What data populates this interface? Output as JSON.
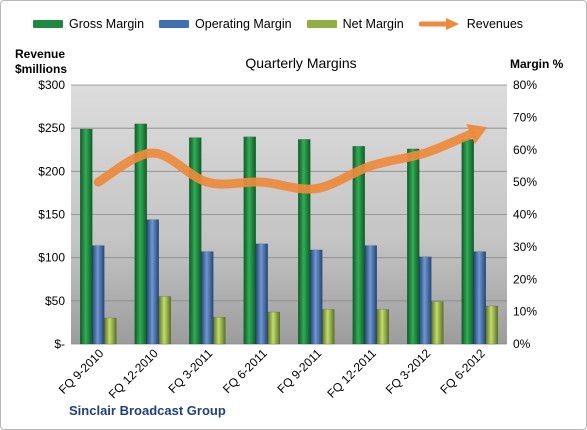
{
  "chart_data": {
    "type": "bar",
    "title": "Quarterly Margins",
    "y_left_label": "Revenue $millions",
    "y_right_label": "Margin %",
    "company": "Sinclair Broadcast Group",
    "categories": [
      "FQ 9-2010",
      "FQ 12-2010",
      "FQ 3-2011",
      "FQ 6-2011",
      "FQ 9-2011",
      "FQ 12-2011",
      "FQ 3-2012",
      "FQ 6-2012"
    ],
    "series": [
      {
        "name": "Gross Margin",
        "type": "bar",
        "axis": "left",
        "color": "#1f8a3f",
        "values": [
          249,
          255,
          239,
          240,
          237,
          229,
          226,
          237
        ]
      },
      {
        "name": "Operating Margin",
        "type": "bar",
        "axis": "left",
        "color": "#3f6fb0",
        "values": [
          114,
          144,
          107,
          116,
          109,
          114,
          101,
          107
        ]
      },
      {
        "name": "Net Margin",
        "type": "bar",
        "axis": "left",
        "color": "#8fb040",
        "values": [
          30,
          55,
          31,
          37,
          40,
          40,
          49,
          44
        ]
      },
      {
        "name": "Revenues",
        "type": "line",
        "axis": "right",
        "color": "#ee8a3c",
        "values": [
          50,
          59,
          50,
          50,
          48,
          55,
          59,
          66
        ]
      }
    ],
    "y_left": {
      "min": 0,
      "max": 300,
      "ticks": [
        "$-",
        "$50",
        "$100",
        "$150",
        "$200",
        "$250",
        "$300"
      ]
    },
    "y_right": {
      "min": 0,
      "max": 80,
      "ticks": [
        "0%",
        "10%",
        "20%",
        "30%",
        "40%",
        "50%",
        "60%",
        "70%",
        "80%"
      ]
    },
    "grid": true,
    "legend_position": "top"
  }
}
